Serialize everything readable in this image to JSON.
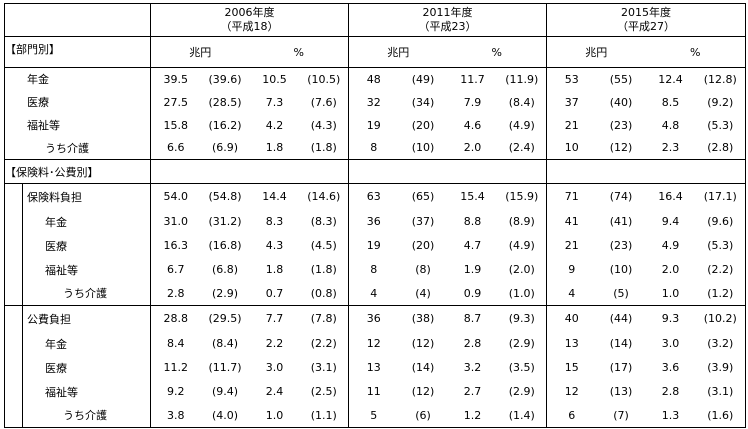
{
  "header": {
    "years": [
      {
        "year": "2006年度",
        "era": "（平成18）"
      },
      {
        "year": "2011年度",
        "era": "（平成23）"
      },
      {
        "year": "2015年度",
        "era": "（平成27）"
      }
    ],
    "units": [
      "兆円",
      "%"
    ]
  },
  "sections": [
    {
      "label": "【部門別】",
      "rows": [
        {
          "label": "年金",
          "cells": [
            "39.5",
            "(39.6)",
            "10.5",
            "(10.5)",
            "48",
            "(49)",
            "11.7",
            "(11.9)",
            "53",
            "(55)",
            "12.4",
            "(12.8)"
          ]
        },
        {
          "label": "医療",
          "cells": [
            "27.5",
            "(28.5)",
            "7.3",
            "(7.6)",
            "32",
            "(34)",
            "7.9",
            "(8.4)",
            "37",
            "(40)",
            "8.5",
            "(9.2)"
          ]
        },
        {
          "label": "福祉等",
          "cells": [
            "15.8",
            "(16.2)",
            "4.2",
            "(4.3)",
            "19",
            "(20)",
            "4.6",
            "(4.9)",
            "21",
            "(23)",
            "4.8",
            "(5.3)"
          ],
          "sub_rows": [
            {
              "label": "うち介護",
              "cells": [
                "6.6",
                "(6.9)",
                "1.8",
                "(1.8)",
                "8",
                "(10)",
                "2.0",
                "(2.4)",
                "10",
                "(12)",
                "2.3",
                "(2.8)"
              ]
            }
          ]
        }
      ]
    },
    {
      "label": "【保険料･公費別】",
      "groups": [
        {
          "label": "保険料負担",
          "cells": [
            "54.0",
            "(54.8)",
            "14.4",
            "(14.6)",
            "63",
            "(65)",
            "15.4",
            "(15.9)",
            "71",
            "(74)",
            "16.4",
            "(17.1)"
          ],
          "rows": [
            {
              "label": "年金",
              "cells": [
                "31.0",
                "(31.2)",
                "8.3",
                "(8.3)",
                "36",
                "(37)",
                "8.8",
                "(8.9)",
                "41",
                "(41)",
                "9.4",
                "(9.6)"
              ]
            },
            {
              "label": "医療",
              "cells": [
                "16.3",
                "(16.8)",
                "4.3",
                "(4.5)",
                "19",
                "(20)",
                "4.7",
                "(4.9)",
                "21",
                "(23)",
                "4.9",
                "(5.3)"
              ]
            },
            {
              "label": "福祉等",
              "cells": [
                "6.7",
                "(6.8)",
                "1.8",
                "(1.8)",
                "8",
                "(8)",
                "1.9",
                "(2.0)",
                "9",
                "(10)",
                "2.0",
                "(2.2)"
              ],
              "sub_rows": [
                {
                  "label": "うち介護",
                  "cells": [
                    "2.8",
                    "(2.9)",
                    "0.7",
                    "(0.8)",
                    "4",
                    "(4)",
                    "0.9",
                    "(1.0)",
                    "4",
                    "(5)",
                    "1.0",
                    "(1.2)"
                  ]
                }
              ]
            }
          ]
        },
        {
          "label": "公費負担",
          "cells": [
            "28.8",
            "(29.5)",
            "7.7",
            "(7.8)",
            "36",
            "(38)",
            "8.7",
            "(9.3)",
            "40",
            "(44)",
            "9.3",
            "(10.2)"
          ],
          "rows": [
            {
              "label": "年金",
              "cells": [
                "8.4",
                "(8.4)",
                "2.2",
                "(2.2)",
                "12",
                "(12)",
                "2.8",
                "(2.9)",
                "13",
                "(14)",
                "3.0",
                "(3.2)"
              ]
            },
            {
              "label": "医療",
              "cells": [
                "11.2",
                "(11.7)",
                "3.0",
                "(3.1)",
                "13",
                "(14)",
                "3.2",
                "(3.5)",
                "15",
                "(17)",
                "3.6",
                "(3.9)"
              ]
            },
            {
              "label": "福祉等",
              "cells": [
                "9.2",
                "(9.4)",
                "2.4",
                "(2.5)",
                "11",
                "(12)",
                "2.7",
                "(2.9)",
                "12",
                "(13)",
                "2.8",
                "(3.1)"
              ],
              "sub_rows": [
                {
                  "label": "うち介護",
                  "cells": [
                    "3.8",
                    "(4.0)",
                    "1.0",
                    "(1.1)",
                    "5",
                    "(6)",
                    "1.2",
                    "(1.4)",
                    "6",
                    "(7)",
                    "1.3",
                    "(1.6)"
                  ]
                }
              ]
            }
          ]
        }
      ]
    }
  ]
}
